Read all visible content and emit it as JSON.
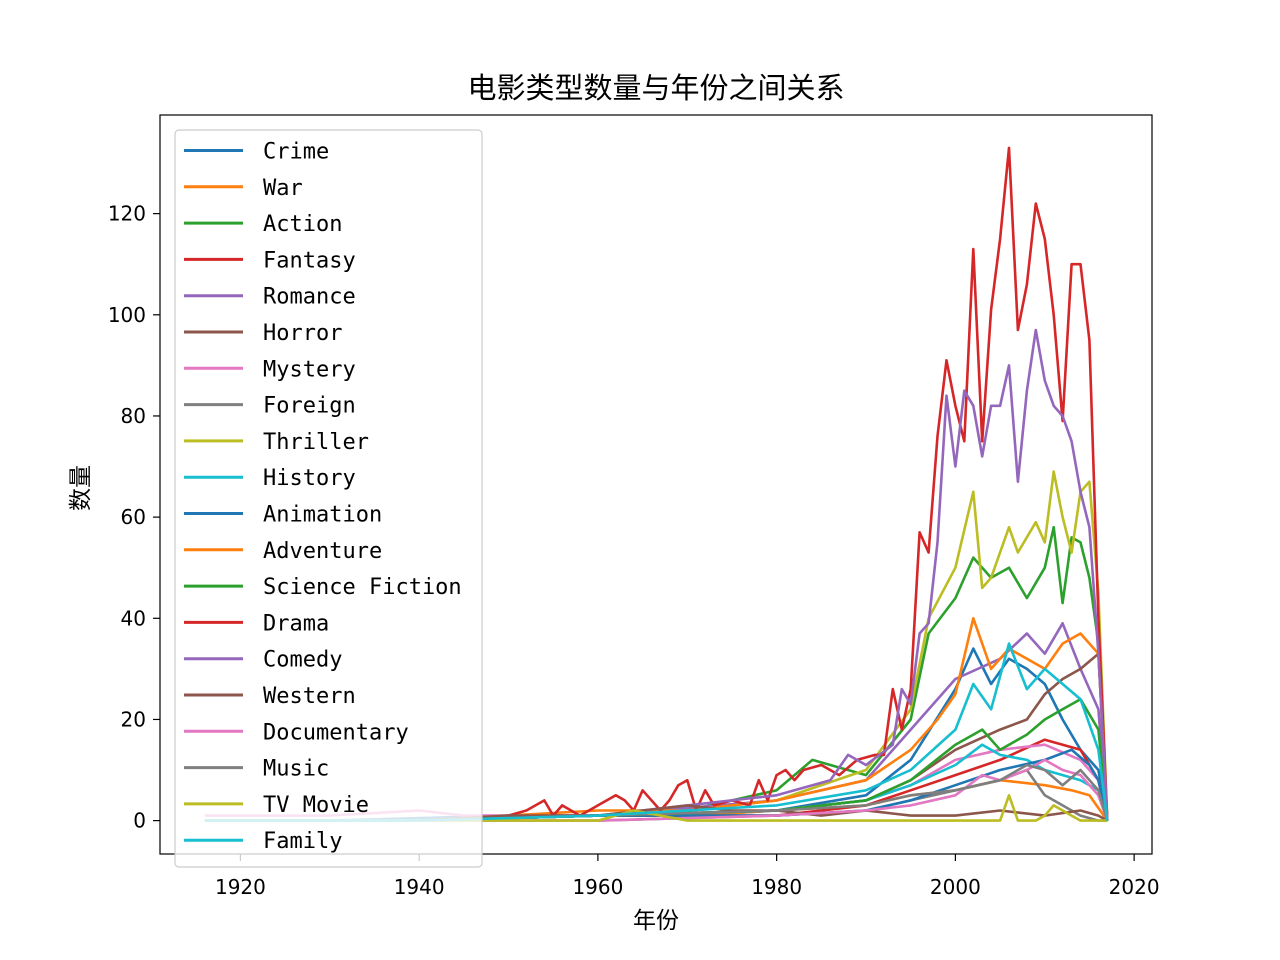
{
  "chart_data": {
    "type": "line",
    "title": "电影类型数量与年份之间关系",
    "xlabel": "年份",
    "ylabel": "数量",
    "xlim": [
      1911,
      2022
    ],
    "ylim": [
      -6.6,
      139.5
    ],
    "xticks": [
      1920,
      1940,
      1960,
      1980,
      2000,
      2020
    ],
    "yticks": [
      0,
      20,
      40,
      60,
      80,
      100,
      120
    ],
    "grid": false,
    "legend_position": "upper-left",
    "series": [
      {
        "name": "Crime",
        "color": "#1f77b4",
        "x": [
          1916,
          1930,
          1950,
          1960,
          1970,
          1980,
          1990,
          1995,
          2000,
          2002,
          2004,
          2006,
          2008,
          2010,
          2012,
          2014,
          2016,
          2017
        ],
        "y": [
          0,
          0,
          1,
          1,
          1,
          2,
          5,
          12,
          26,
          34,
          27,
          32,
          30,
          27,
          20,
          14,
          10,
          0
        ]
      },
      {
        "name": "War",
        "color": "#ff7f0e",
        "x": [
          1916,
          1940,
          1960,
          1970,
          1980,
          1990,
          1995,
          2000,
          2005,
          2010,
          2013,
          2015,
          2017
        ],
        "y": [
          0,
          0,
          1,
          1,
          2,
          3,
          5,
          6,
          8,
          7,
          6,
          5,
          0
        ]
      },
      {
        "name": "Action",
        "color": "#2ca02c",
        "x": [
          1916,
          1940,
          1960,
          1970,
          1980,
          1984,
          1990,
          1995,
          1997,
          2000,
          2002,
          2004,
          2006,
          2008,
          2010,
          2011,
          2012,
          2013,
          2014,
          2015,
          2016,
          2017
        ],
        "y": [
          0,
          0,
          1,
          2,
          6,
          12,
          9,
          20,
          37,
          44,
          52,
          48,
          50,
          44,
          50,
          58,
          43,
          56,
          55,
          48,
          35,
          0
        ]
      },
      {
        "name": "Fantasy",
        "color": "#d62728",
        "x": [
          1916,
          1940,
          1960,
          1980,
          1990,
          1995,
          2000,
          2005,
          2010,
          2014,
          2016,
          2017
        ],
        "y": [
          0,
          0,
          1,
          1,
          3,
          6,
          9,
          12,
          16,
          14,
          8,
          0
        ]
      },
      {
        "name": "Romance",
        "color": "#9467bd",
        "x": [
          1916,
          1940,
          1960,
          1980,
          1990,
          1995,
          2000,
          2005,
          2008,
          2010,
          2012,
          2014,
          2016,
          2017
        ],
        "y": [
          0,
          0,
          1,
          4,
          8,
          18,
          28,
          32,
          37,
          33,
          39,
          30,
          22,
          0
        ]
      },
      {
        "name": "Horror",
        "color": "#8c564b",
        "x": [
          1916,
          1940,
          1960,
          1980,
          1990,
          1995,
          2000,
          2005,
          2008,
          2010,
          2012,
          2014,
          2016,
          2017
        ],
        "y": [
          0,
          0,
          1,
          2,
          4,
          8,
          14,
          18,
          20,
          25,
          28,
          30,
          33,
          0
        ]
      },
      {
        "name": "Mystery",
        "color": "#e377c2",
        "x": [
          1916,
          1930,
          1940,
          1945,
          1950,
          1960,
          1980,
          1990,
          1995,
          2000,
          2005,
          2010,
          2014,
          2016,
          2017
        ],
        "y": [
          1,
          1,
          2,
          1,
          1,
          1,
          2,
          4,
          7,
          12,
          14,
          15,
          12,
          8,
          0
        ]
      },
      {
        "name": "Foreign",
        "color": "#7f7f7f",
        "x": [
          1916,
          1940,
          1960,
          1980,
          1990,
          1995,
          2000,
          2005,
          2008,
          2010,
          2012,
          2014,
          2016,
          2017
        ],
        "y": [
          0,
          0,
          0,
          1,
          2,
          4,
          6,
          8,
          10,
          5,
          3,
          1,
          0,
          0
        ]
      },
      {
        "name": "Thriller",
        "color": "#bcbd22",
        "x": [
          1916,
          1940,
          1960,
          1970,
          1980,
          1990,
          1995,
          1997,
          2000,
          2002,
          2003,
          2004,
          2006,
          2007,
          2009,
          2010,
          2011,
          2012,
          2013,
          2014,
          2015,
          2016,
          2017
        ],
        "y": [
          0,
          0,
          1,
          2,
          4,
          10,
          22,
          40,
          50,
          65,
          46,
          48,
          58,
          53,
          59,
          55,
          69,
          60,
          53,
          65,
          67,
          45,
          0
        ]
      },
      {
        "name": "History",
        "color": "#17becf",
        "x": [
          1916,
          1940,
          1960,
          1980,
          1990,
          1995,
          2000,
          2003,
          2005,
          2008,
          2010,
          2012,
          2014,
          2016,
          2017
        ],
        "y": [
          0,
          0,
          1,
          2,
          4,
          7,
          11,
          15,
          13,
          12,
          10,
          9,
          8,
          6,
          0
        ]
      },
      {
        "name": "Animation",
        "color": "#1f77b4",
        "x": [
          1916,
          1940,
          1960,
          1980,
          1990,
          1995,
          2000,
          2005,
          2010,
          2013,
          2015,
          2016,
          2017
        ],
        "y": [
          0,
          0,
          1,
          1,
          2,
          4,
          7,
          10,
          12,
          14,
          11,
          8,
          0
        ]
      },
      {
        "name": "Adventure",
        "color": "#ff7f0e",
        "x": [
          1916,
          1940,
          1960,
          1970,
          1980,
          1990,
          1995,
          1998,
          2000,
          2002,
          2004,
          2006,
          2008,
          2010,
          2012,
          2014,
          2016,
          2017
        ],
        "y": [
          0,
          0,
          2,
          2,
          4,
          8,
          14,
          20,
          25,
          40,
          30,
          34,
          32,
          30,
          35,
          37,
          33,
          0
        ]
      },
      {
        "name": "Science Fiction",
        "color": "#2ca02c",
        "x": [
          1916,
          1940,
          1960,
          1980,
          1990,
          1995,
          2000,
          2003,
          2005,
          2008,
          2010,
          2012,
          2014,
          2016,
          2017
        ],
        "y": [
          0,
          0,
          1,
          2,
          4,
          8,
          15,
          18,
          14,
          17,
          20,
          22,
          24,
          18,
          0
        ]
      },
      {
        "name": "Drama",
        "color": "#d62728",
        "x": [
          1916,
          1940,
          1948,
          1952,
          1954,
          1955,
          1956,
          1958,
          1960,
          1962,
          1963,
          1964,
          1965,
          1967,
          1968,
          1969,
          1970,
          1971,
          1972,
          1973,
          1975,
          1977,
          1978,
          1979,
          1980,
          1981,
          1982,
          1983,
          1985,
          1987,
          1989,
          1991,
          1992,
          1993,
          1994,
          1995,
          1996,
          1997,
          1998,
          1999,
          2000,
          2001,
          2002,
          2003,
          2004,
          2005,
          2006,
          2007,
          2008,
          2009,
          2010,
          2011,
          2012,
          2013,
          2014,
          2015,
          2016,
          2017
        ],
        "y": [
          0,
          0,
          0,
          2,
          4,
          1,
          3,
          1,
          3,
          5,
          4,
          2,
          6,
          2,
          4,
          7,
          8,
          2,
          6,
          3,
          4,
          3,
          8,
          4,
          9,
          10,
          8,
          10,
          11,
          9,
          12,
          13,
          13,
          26,
          18,
          26,
          57,
          53,
          76,
          91,
          82,
          75,
          113,
          75,
          101,
          115,
          133,
          97,
          106,
          122,
          115,
          100,
          79,
          110,
          110,
          95,
          40,
          0
        ]
      },
      {
        "name": "Comedy",
        "color": "#9467bd",
        "x": [
          1916,
          1940,
          1960,
          1970,
          1980,
          1986,
          1988,
          1990,
          1993,
          1994,
          1995,
          1996,
          1997,
          1998,
          1999,
          2000,
          2001,
          2002,
          2003,
          2004,
          2005,
          2006,
          2007,
          2008,
          2009,
          2010,
          2011,
          2012,
          2013,
          2014,
          2015,
          2016,
          2017
        ],
        "y": [
          0,
          0,
          1,
          3,
          5,
          8,
          13,
          11,
          15,
          26,
          23,
          37,
          39,
          55,
          84,
          70,
          85,
          82,
          72,
          82,
          82,
          90,
          67,
          85,
          97,
          87,
          82,
          80,
          75,
          65,
          58,
          33,
          0
        ]
      },
      {
        "name": "Western",
        "color": "#8c564b",
        "x": [
          1916,
          1940,
          1950,
          1955,
          1960,
          1965,
          1970,
          1975,
          1980,
          1985,
          1990,
          1995,
          2000,
          2005,
          2010,
          2014,
          2016,
          2017
        ],
        "y": [
          0,
          0,
          1,
          1,
          1,
          2,
          3,
          2,
          2,
          1,
          2,
          1,
          1,
          2,
          1,
          2,
          1,
          0
        ]
      },
      {
        "name": "Documentary",
        "color": "#e377c2",
        "x": [
          1916,
          1940,
          1960,
          1980,
          1990,
          1995,
          2000,
          2003,
          2005,
          2008,
          2010,
          2012,
          2014,
          2016,
          2017
        ],
        "y": [
          0,
          0,
          0,
          1,
          2,
          3,
          5,
          9,
          8,
          10,
          12,
          10,
          9,
          5,
          0
        ]
      },
      {
        "name": "Music",
        "color": "#7f7f7f",
        "x": [
          1916,
          1940,
          1960,
          1980,
          1990,
          1995,
          2000,
          2005,
          2008,
          2010,
          2012,
          2014,
          2016,
          2017
        ],
        "y": [
          0,
          0,
          1,
          2,
          3,
          5,
          6,
          8,
          11,
          10,
          7,
          10,
          6,
          0
        ]
      },
      {
        "name": "TV Movie",
        "color": "#bcbd22",
        "x": [
          1916,
          1960,
          1964,
          1970,
          1980,
          2000,
          2005,
          2006,
          2007,
          2008,
          2009,
          2010,
          2011,
          2012,
          2013,
          2014,
          2015,
          2016,
          2017
        ],
        "y": [
          0,
          0,
          2,
          0,
          0,
          0,
          0,
          5,
          0,
          0,
          0,
          1,
          3,
          2,
          1,
          0,
          0,
          0,
          0
        ]
      },
      {
        "name": "Family",
        "color": "#17becf",
        "x": [
          1916,
          1940,
          1960,
          1980,
          1990,
          1995,
          2000,
          2002,
          2004,
          2006,
          2008,
          2010,
          2012,
          2014,
          2016,
          2017
        ],
        "y": [
          0,
          0,
          1,
          3,
          6,
          10,
          18,
          27,
          22,
          35,
          26,
          30,
          27,
          24,
          14,
          0
        ]
      }
    ]
  }
}
